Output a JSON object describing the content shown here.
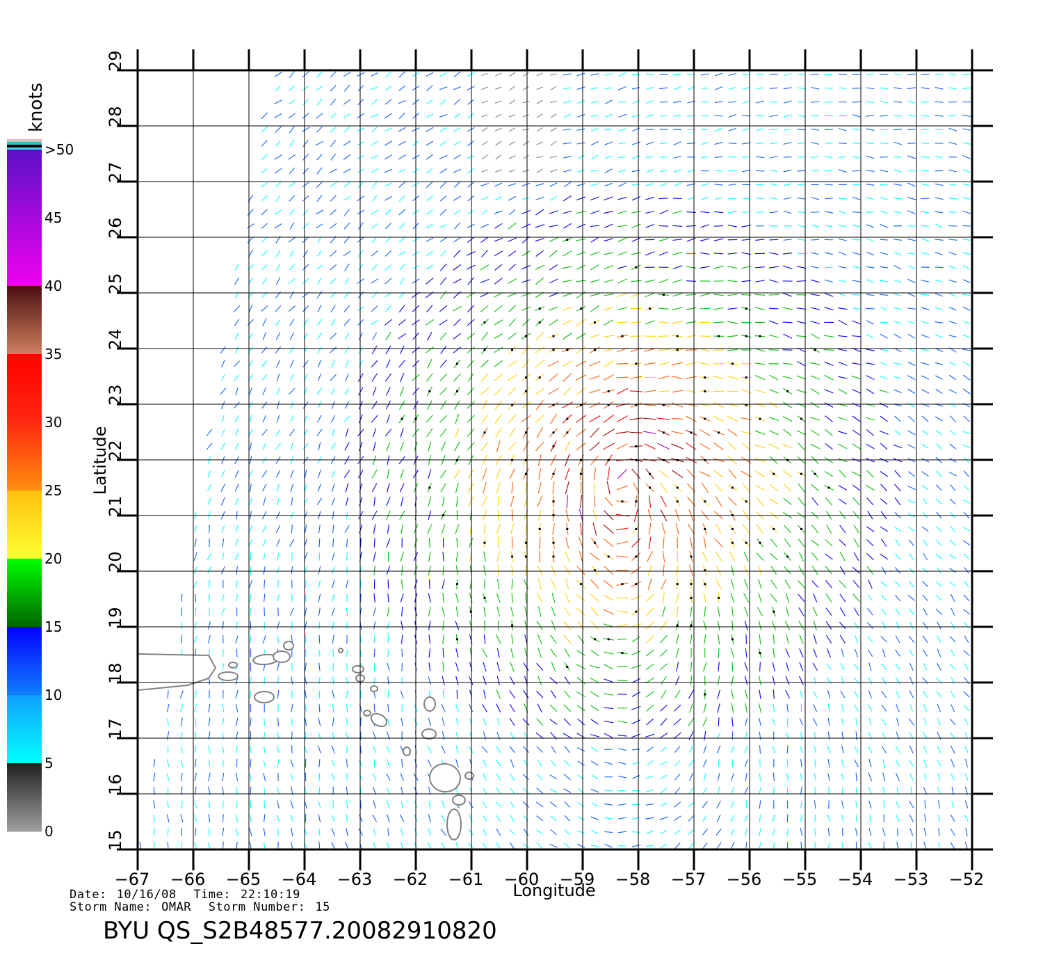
{
  "chart_data": {
    "type": "wind-vector-map",
    "xlabel": "Longitude",
    "ylabel": "Latitude",
    "xlim": [
      -67,
      -52
    ],
    "ylim": [
      15,
      29
    ],
    "x_ticks": [
      "-67",
      "-66",
      "-65",
      "-64",
      "-63",
      "-62",
      "-61",
      "-60",
      "-59",
      "-58",
      "-57",
      "-56",
      "-55",
      "-54",
      "-53",
      "-52"
    ],
    "y_ticks": [
      "15",
      "16",
      "17",
      "18",
      "19",
      "20",
      "21",
      "22",
      "23",
      "24",
      "25",
      "26",
      "27",
      "28",
      "29"
    ],
    "grid": true,
    "storm_center": {
      "lon": -58.3,
      "lat": 21.8
    },
    "land_mask_lon_max": -60.5,
    "land_mask_lat_max": 19.5
  },
  "colorbar": {
    "title": "knots",
    "labels": [
      ">50",
      "45",
      "40",
      "35",
      "30",
      "25",
      "20",
      "15",
      "10",
      "5",
      "0"
    ],
    "bands": [
      {
        "from": 50,
        "to": 40,
        "top": "#5a10c8",
        "bottom": "#f000f0"
      },
      {
        "from": 40,
        "to": 35,
        "top": "#4a1010",
        "bottom": "#d08060"
      },
      {
        "from": 35,
        "to": 30,
        "top": "#ff0000",
        "bottom": "#ff2810"
      },
      {
        "from": 30,
        "to": 25,
        "top": "#ff2810",
        "bottom": "#ff9010"
      },
      {
        "from": 25,
        "to": 20,
        "top": "#ffc010",
        "bottom": "#ffff30"
      },
      {
        "from": 20,
        "to": 15,
        "top": "#00ff00",
        "bottom": "#006400"
      },
      {
        "from": 15,
        "to": 10,
        "top": "#0000ff",
        "bottom": "#1080ff"
      },
      {
        "from": 10,
        "to": 5,
        "top": "#10a0ff",
        "bottom": "#00ffff"
      },
      {
        "from": 5,
        "to": 0,
        "top": "#202020",
        "bottom": "#a0a0a0"
      }
    ],
    "extra_stripes": [
      "#ffb0c0",
      "#30c0c0",
      "#000000",
      "#40e0e0"
    ]
  },
  "colors": {
    "speed_scale": [
      "#808080",
      "#00ffff",
      "#1060ff",
      "#0000ff",
      "#00c000",
      "#ffd000",
      "#ff6000",
      "#ff0000",
      "#a00000",
      "#a000c0"
    ],
    "land": "#808080",
    "grid": "#000000"
  },
  "info": {
    "date_label": "Date:",
    "date": "10/16/08",
    "time_label": "Time:",
    "time": "22:10:19",
    "storm_name_label": "Storm  Name:",
    "storm_name": "OMAR",
    "storm_number_label": "Storm  Number:",
    "storm_number": "15",
    "product_id": "BYU  QS_S2B48577.20082910820"
  }
}
